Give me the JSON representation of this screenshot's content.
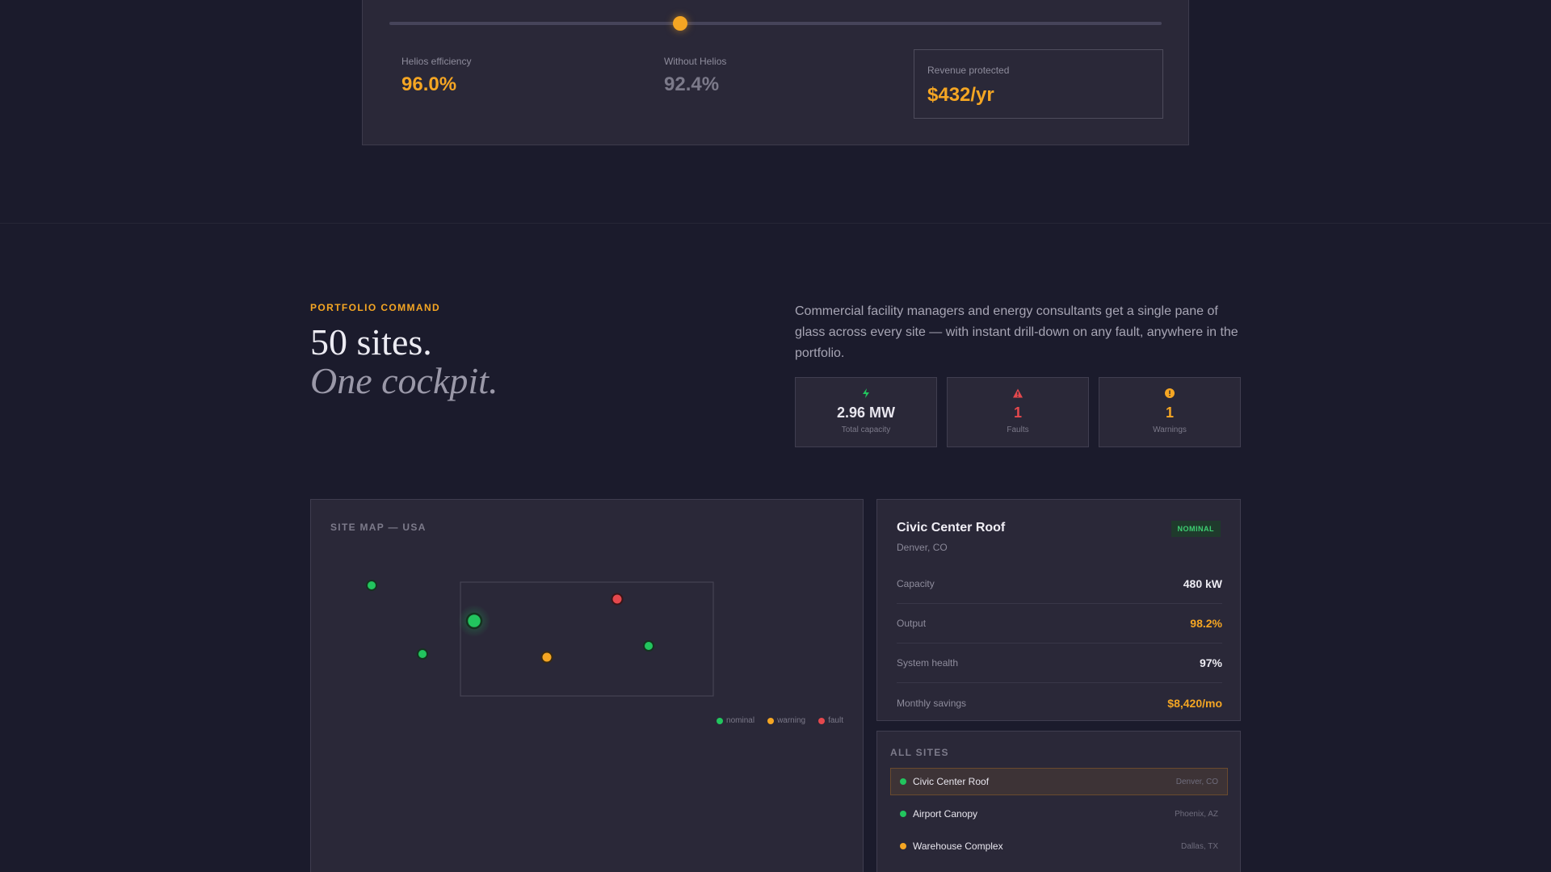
{
  "calculator": {
    "slider_position_fraction": 0.377,
    "helios_efficiency": {
      "label": "Helios efficiency",
      "value": "96.0%"
    },
    "without_helios": {
      "label": "Without Helios",
      "value": "92.4%"
    },
    "revenue_protected": {
      "label": "Revenue protected",
      "value": "$432/yr"
    }
  },
  "portfolio": {
    "eyebrow": "PORTFOLIO COMMAND",
    "headline_line1": "50 sites.",
    "headline_line2": "One cockpit.",
    "intro": "Commercial facility managers and energy consultants get a single pane of glass across every site — with instant drill-down on any fault, anywhere in the portfolio.",
    "stats": [
      {
        "icon": "bolt-icon",
        "value": "2.96 MW",
        "label": "Total capacity"
      },
      {
        "icon": "warning-triangle-icon",
        "value": "1",
        "label": "Faults"
      },
      {
        "icon": "alert-circle-icon",
        "value": "1",
        "label": "Warnings"
      }
    ]
  },
  "map": {
    "title": "SITE MAP — USA",
    "legend": [
      {
        "label": "nominal",
        "color": "#22c55e"
      },
      {
        "label": "warning",
        "color": "#f5a623"
      },
      {
        "label": "fault",
        "color": "#e5484d"
      }
    ],
    "status_colors": {
      "nominal": "#22c55e",
      "warning": "#f5a623",
      "fault": "#e5484d"
    }
  },
  "selected_site": {
    "name": "Civic Center Roof",
    "location": "Denver, CO",
    "status": "NOMINAL",
    "rows": [
      {
        "label": "Capacity",
        "value": "480 kW",
        "accent": false
      },
      {
        "label": "Output",
        "value": "98.2%",
        "accent": true
      },
      {
        "label": "System health",
        "value": "97%",
        "accent": false
      },
      {
        "label": "Monthly savings",
        "value": "$8,420/mo",
        "accent": true
      }
    ]
  },
  "all_sites": {
    "title": "ALL SITES",
    "items": [
      {
        "name": "Civic Center Roof",
        "location": "Denver, CO",
        "status": "nominal",
        "selected": true
      },
      {
        "name": "Airport Canopy",
        "location": "Phoenix, AZ",
        "status": "nominal",
        "selected": false
      },
      {
        "name": "Warehouse Complex",
        "location": "Dallas, TX",
        "status": "warning",
        "selected": false
      }
    ]
  },
  "colors": {
    "accent": "#f5a623",
    "background": "#1b1b2c",
    "card": "#2a2838"
  }
}
